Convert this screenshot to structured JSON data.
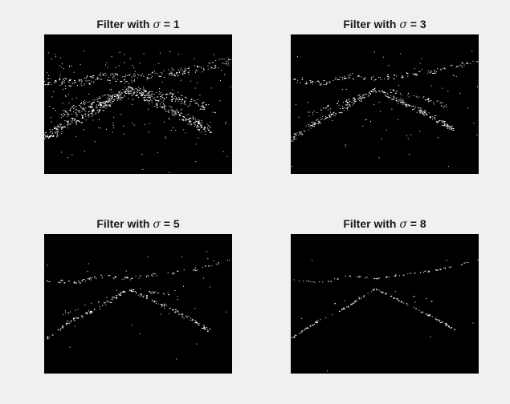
{
  "figure": {
    "background_color": "#f0f0f0",
    "image_background": "#000000",
    "edge_color": "#ffffff",
    "panels": [
      {
        "prefix": "Filter with ",
        "symbol": "σ",
        "suffix": " = 1",
        "sigma": 1
      },
      {
        "prefix": "Filter with ",
        "symbol": "σ",
        "suffix": " = 3",
        "sigma": 3
      },
      {
        "prefix": "Filter with ",
        "symbol": "σ",
        "suffix": " = 5",
        "sigma": 5
      },
      {
        "prefix": "Filter with ",
        "symbol": "σ",
        "suffix": " = 8",
        "sigma": 8
      }
    ]
  }
}
